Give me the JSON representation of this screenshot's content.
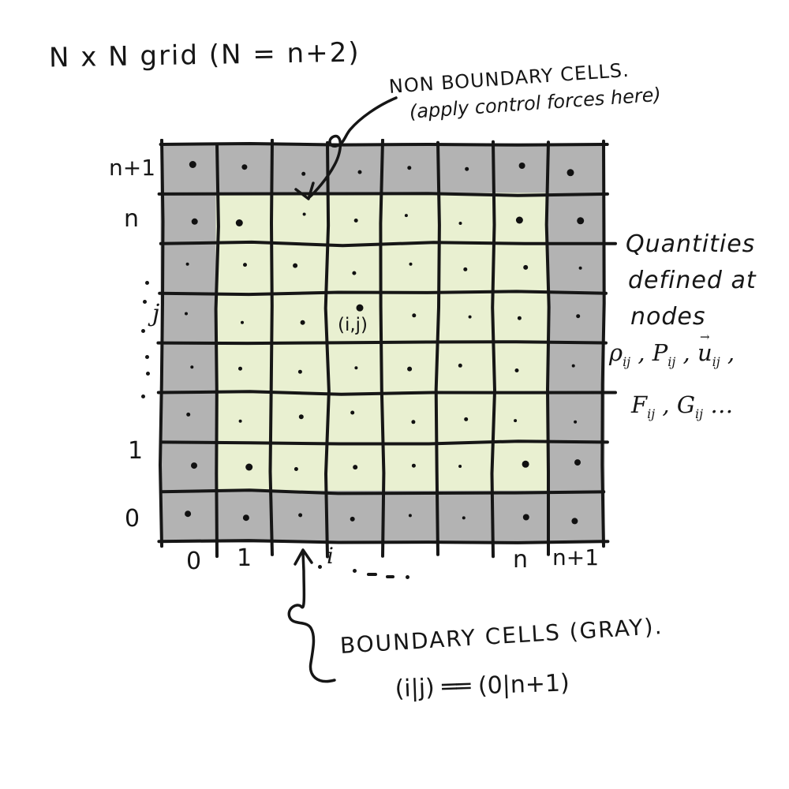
{
  "title": "N x N grid   (N = n+2)",
  "top_annotation": {
    "line1": "NON BOUNDARY CELLS.",
    "line2": "(apply control forces here)"
  },
  "right_annotation": {
    "lines": [
      "Quantities",
      "defined at",
      "nodes"
    ]
  },
  "node_quantities": {
    "line1": [
      {
        "base": "ρ",
        "sub": "ij",
        "sep": " , "
      },
      {
        "base": "P",
        "sub": "ij",
        "sep": " , "
      },
      {
        "base": "u",
        "accent": "→",
        "sub": "ij",
        "sep": " ,"
      }
    ],
    "line2": [
      {
        "base": "F",
        "sub": "ij",
        "sep": " , "
      },
      {
        "base": "G",
        "sub": "ij",
        "sep": " …"
      }
    ]
  },
  "bottom_annotation": {
    "line1": "BOUNDARY CELLS (GRAY).",
    "line2": "(i|j) ══ (0|n+1)"
  },
  "axis": {
    "row_labels": [
      "n+1",
      "n",
      "j",
      "1",
      "0"
    ],
    "col_labels": [
      "0",
      "1",
      "i",
      "n",
      "n+1"
    ]
  },
  "grid": {
    "rows": 8,
    "cols": 8,
    "boundary_color": "#b3b3b3",
    "interior_color": "#e9f0d1",
    "line_color": "#161616",
    "dot_color": "#111111",
    "cell_label": "(i,j)",
    "cell_label_cell": {
      "row": 3,
      "col": 3
    },
    "node_dot_diameters": [
      [
        9,
        7,
        5,
        5,
        5,
        5,
        8,
        9
      ],
      [
        8,
        9,
        4,
        5,
        4,
        4,
        9,
        9
      ],
      [
        4,
        5,
        6,
        5,
        4,
        5,
        6,
        4
      ],
      [
        4,
        4,
        6,
        9,
        5,
        4,
        5,
        5
      ],
      [
        4,
        5,
        5,
        4,
        6,
        5,
        5,
        4
      ],
      [
        5,
        4,
        6,
        5,
        5,
        5,
        4,
        4
      ],
      [
        8,
        9,
        5,
        6,
        5,
        4,
        9,
        8
      ],
      [
        8,
        8,
        5,
        6,
        4,
        4,
        8,
        8
      ]
    ]
  }
}
